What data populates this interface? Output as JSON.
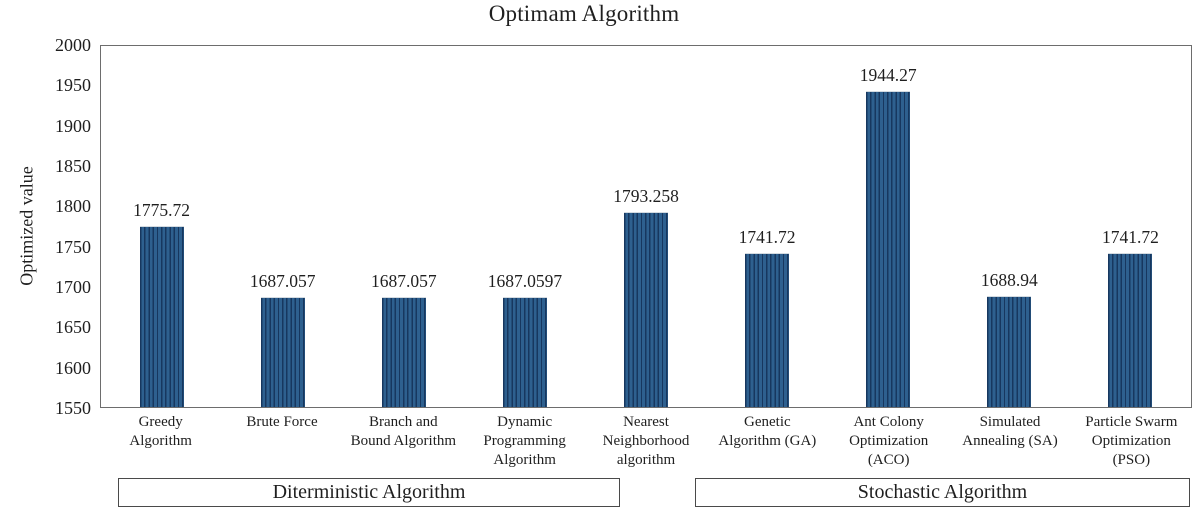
{
  "chart_data": {
    "type": "bar",
    "title": "Optimam Algorithm",
    "xlabel": "",
    "ylabel": "Optimized value",
    "ylim": [
      1550,
      2000
    ],
    "ytick_step": 50,
    "yticks": [
      2000,
      1950,
      1900,
      1850,
      1800,
      1750,
      1700,
      1650,
      1600,
      1550
    ],
    "grid": "off",
    "legend": "none",
    "categories": [
      "Greedy\nAlgorithm",
      "Brute Force",
      "Branch and\nBound Algorithm",
      "Dynamic\nProgramming\nAlgorithm",
      "Nearest\nNeighborhood\nalgorithm",
      "Genetic\nAlgorithm (GA)",
      "Ant Colony\nOptimization\n(ACO)",
      "Simulated\nAnnealing (SA)",
      "Particle Swarm\nOptimization\n(PSO)"
    ],
    "values": [
      1775.72,
      1687.057,
      1687.057,
      1687.0597,
      1793.258,
      1741.72,
      1944.27,
      1688.94,
      1741.72
    ],
    "value_labels": [
      "1775.72",
      "1687.057",
      "1687.057",
      "1687.0597",
      "1793.258",
      "1741.72",
      "1944.27",
      "1688.94",
      "1741.72"
    ],
    "groups": [
      {
        "label": "Diterministic Algorithm",
        "category_range": [
          0,
          4
        ]
      },
      {
        "label": "Stochastic Algorithm",
        "category_range": [
          5,
          8
        ]
      }
    ],
    "colors": {
      "bar_fill": "#2E608F",
      "bar_stripe": "#17375F",
      "axis_border": "#6D6D6D",
      "group_box_border": "#4A4A4A",
      "text": "#1F1F1F"
    }
  }
}
